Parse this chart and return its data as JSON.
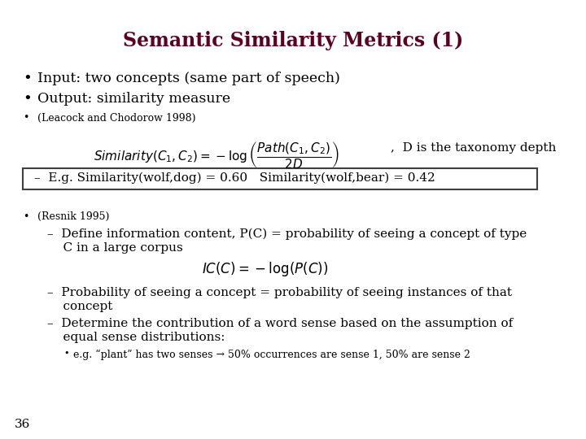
{
  "title": "Semantic Similarity Metrics (1)",
  "title_color": "#5B0020",
  "background_color": "#FFFFFF",
  "slide_number": "36",
  "bullet1": "Input: two concepts (same part of speech)",
  "bullet2": "Output: similarity measure",
  "bullet3": "(Leacock and Chodorow 1998)",
  "formula1_text": "$\\mathit{Similarity}(C_1, C_2) = -\\log\\left(\\dfrac{\\mathit{Path}(C_1, C_2)}{2D}\\right)$",
  "formula1_annotation": ",  D is the taxonomy depth",
  "example_box": "–  E.g. Similarity(wolf,dog) = 0.60   Similarity(wolf,bear) = 0.42",
  "bullet4": "(Resnik 1995)",
  "dash1a": "–  Define information content, P(C) = probability of seeing a concept of type",
  "dash1b": "    C in a large corpus",
  "formula2_text": "$\\mathit{IC}(C) = -\\log(P(C))$",
  "dash2a": "–  Probability of seeing a concept = probability of seeing instances of that",
  "dash2b": "    concept",
  "dash3a": "–  Determine the contribution of a word sense based on the assumption of",
  "dash3b": "    equal sense distributions:",
  "subbullet": "e.g. “plant” has two senses → 50% occurrences are sense 1, 50% are sense 2"
}
